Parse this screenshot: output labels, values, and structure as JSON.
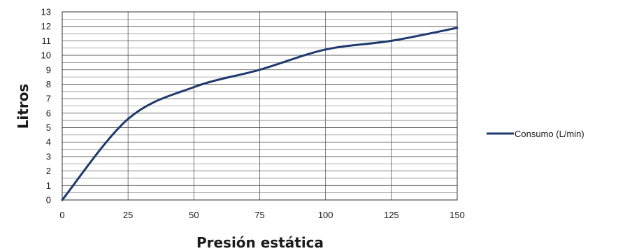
{
  "chart_data": {
    "type": "line",
    "xlabel": "Presión estática",
    "ylabel": "Litros",
    "xlim": [
      0,
      150
    ],
    "ylim": [
      0,
      13
    ],
    "x_ticks": [
      0,
      25,
      50,
      75,
      100,
      125,
      150
    ],
    "y_ticks": [
      0,
      1,
      2,
      3,
      4,
      5,
      6,
      7,
      8,
      9,
      10,
      11,
      12,
      13
    ],
    "grid": true,
    "legend_position": "right",
    "series": [
      {
        "name": "Consumo (L/min)",
        "color": "#1f3a6e",
        "x": [
          0,
          25,
          50,
          75,
          100,
          125,
          150
        ],
        "y": [
          0,
          5.6,
          7.8,
          9.0,
          10.4,
          11.0,
          11.9
        ]
      }
    ]
  }
}
